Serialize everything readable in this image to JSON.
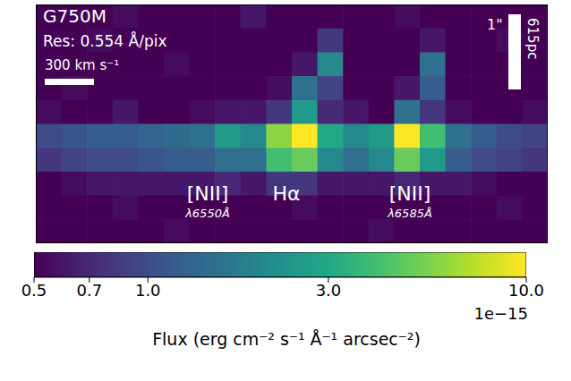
{
  "chart_data": {
    "type": "heatmap",
    "title": "G750M",
    "subtitle": "Res: 0.554 Å/pix",
    "tick_labels": false,
    "scale_bars": [
      {
        "label": "300 km s⁻¹"
      },
      {
        "label": "1\"",
        "label2": "615pc"
      }
    ],
    "annotations": [
      {
        "text": "[NII]",
        "sub": "λ6550Å"
      },
      {
        "text": "Hα"
      },
      {
        "text": "[NII]",
        "sub": "λ6585Å"
      }
    ],
    "cells": [
      [
        0.5,
        0.5,
        0.5,
        0.55,
        0.5,
        0.5,
        0.5,
        0.5,
        0.6,
        0.5,
        0.5,
        0.5,
        0.5,
        0.5,
        0.55,
        0.5,
        0.5,
        0.5,
        0.5,
        0.5
      ],
      [
        0.5,
        0.5,
        0.55,
        0.5,
        0.5,
        0.5,
        0.5,
        0.5,
        0.5,
        0.5,
        0.5,
        0.8,
        0.5,
        0.5,
        0.5,
        0.6,
        0.5,
        0.5,
        0.55,
        0.5
      ],
      [
        0.5,
        0.5,
        0.5,
        0.5,
        0.5,
        0.55,
        0.5,
        0.5,
        0.5,
        0.5,
        0.6,
        2.0,
        0.5,
        0.5,
        0.5,
        1.5,
        0.5,
        0.5,
        0.5,
        0.5
      ],
      [
        0.5,
        0.55,
        0.5,
        0.5,
        0.5,
        0.5,
        0.5,
        0.5,
        0.5,
        0.55,
        1.5,
        0.9,
        0.5,
        0.5,
        0.6,
        1.2,
        0.5,
        0.5,
        0.5,
        0.5
      ],
      [
        0.55,
        0.5,
        0.5,
        0.6,
        0.5,
        0.5,
        0.55,
        0.6,
        0.6,
        0.8,
        2.5,
        0.7,
        0.6,
        0.5,
        1.5,
        0.8,
        0.55,
        0.5,
        0.5,
        0.55
      ],
      [
        1.0,
        1.1,
        1.2,
        1.2,
        1.3,
        1.4,
        1.5,
        2.5,
        2.0,
        6.0,
        10.0,
        3.0,
        2.0,
        2.5,
        10.0,
        4.0,
        1.5,
        1.2,
        1.0,
        0.9
      ],
      [
        0.8,
        0.9,
        1.0,
        1.0,
        1.1,
        1.2,
        1.2,
        1.5,
        1.5,
        4.0,
        5.0,
        2.0,
        1.5,
        2.0,
        5.0,
        2.5,
        1.2,
        1.0,
        0.9,
        0.8
      ],
      [
        0.5,
        0.55,
        0.6,
        0.6,
        0.6,
        0.6,
        0.6,
        0.7,
        0.6,
        0.8,
        0.8,
        0.6,
        0.6,
        0.6,
        0.7,
        0.6,
        0.6,
        0.55,
        0.5,
        0.5
      ],
      [
        0.5,
        0.5,
        0.5,
        0.55,
        0.5,
        0.5,
        0.5,
        0.5,
        0.5,
        0.5,
        0.55,
        0.5,
        0.5,
        0.5,
        0.5,
        0.5,
        0.5,
        0.5,
        0.55,
        0.5
      ],
      [
        0.5,
        0.5,
        0.5,
        0.5,
        0.5,
        0.55,
        0.5,
        0.5,
        0.5,
        0.5,
        0.5,
        0.5,
        0.5,
        0.55,
        0.5,
        0.5,
        0.5,
        0.5,
        0.5,
        0.5
      ]
    ],
    "colorbar": {
      "label": "Flux (erg cm⁻² s⁻¹ Å⁻¹ arcsec⁻²)",
      "scale_label": "1e−15",
      "log": true,
      "range": [
        0.5,
        10
      ],
      "ticks": [
        0.5,
        0.7,
        {
          "value": 1,
          "label": "1.0"
        },
        {
          "value": 3,
          "label": "3.0"
        },
        {
          "value": 10,
          "label": "10.0"
        }
      ]
    }
  }
}
